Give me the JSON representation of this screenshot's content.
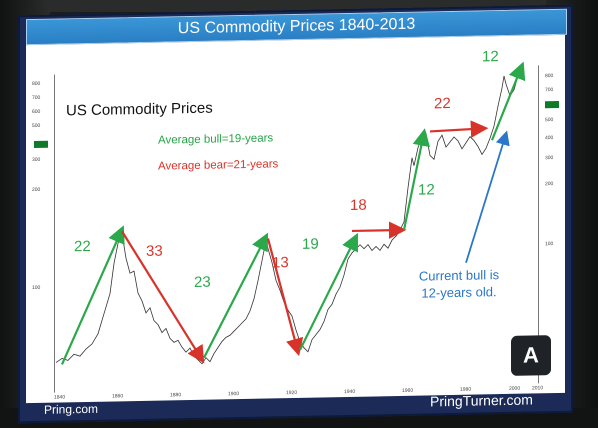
{
  "slide": {
    "title": "US Commodity Prices 1840-2013",
    "chart_title": "US Commodity Prices",
    "legend_bull": "Average bull=19-years",
    "legend_bear": "Average bear=21-years",
    "annotation_current": "Current bull is 12-years old.",
    "logo_text": "A",
    "footer_left": "Pring.com",
    "footer_right": "PringTurner.com"
  },
  "colors": {
    "bull": "#2aa84a",
    "bear": "#d8332a",
    "current": "#2a76c8",
    "title_bar": "#2a7fc4"
  },
  "cycle_labels": {
    "bull": [
      "22",
      "23",
      "19",
      "12",
      "12"
    ],
    "bear": [
      "33",
      "13",
      "18",
      "22"
    ]
  },
  "chart_data": {
    "type": "line",
    "title": "US Commodity Prices",
    "x_range": [
      1840,
      2013
    ],
    "y_scale": "log",
    "y_ticks": [
      "800",
      "700",
      "600",
      "500",
      "400",
      "300",
      "200",
      "100"
    ],
    "x_ticks": [
      "1840",
      "1860",
      "1880",
      "1900",
      "1920",
      "1940",
      "1960",
      "1980",
      "2000",
      "2010"
    ],
    "series": [
      {
        "name": "US Commodity Prices",
        "values": []
      }
    ],
    "bull_markets_years": [
      22,
      23,
      19,
      12,
      12
    ],
    "bear_markets_years": [
      33,
      13,
      18,
      22
    ]
  }
}
